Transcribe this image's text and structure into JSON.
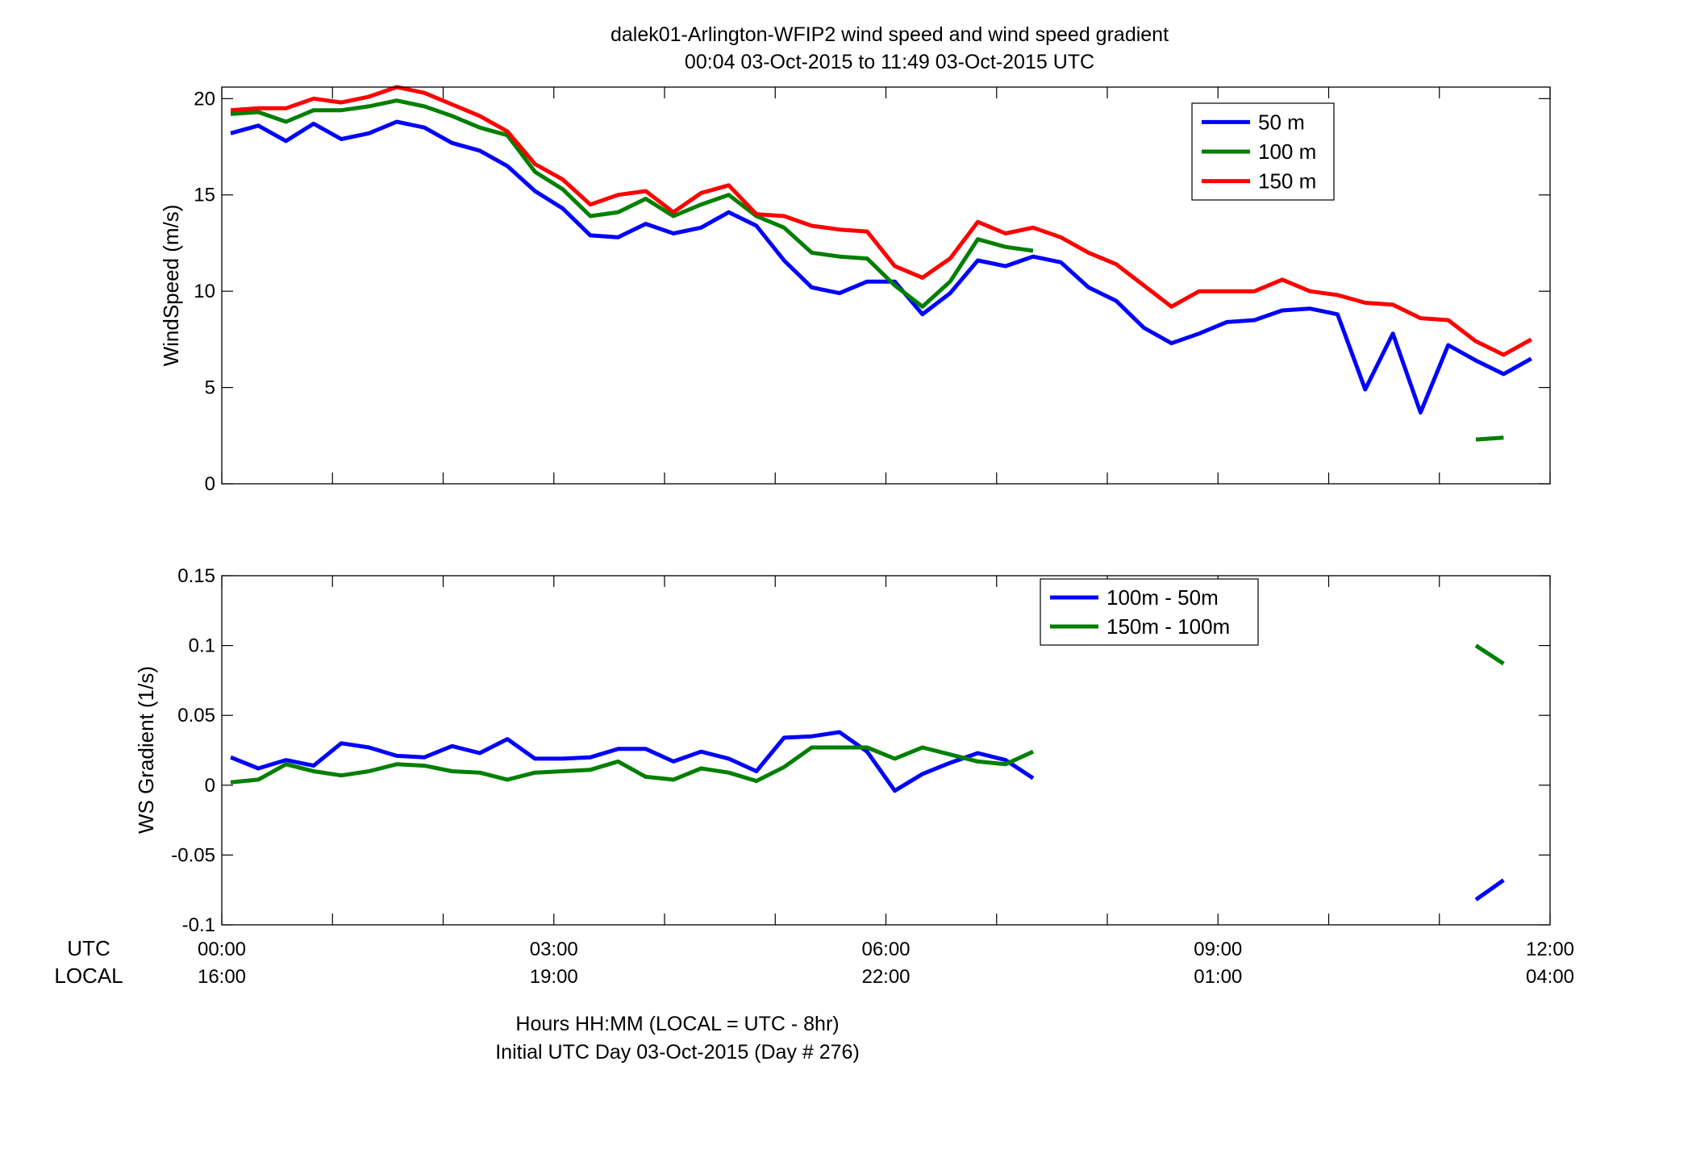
{
  "figure": {
    "title_line1": "dalek01-Arlington-WFIP2  wind speed and wind speed gradient",
    "title_line2": "00:04 03-Oct-2015 to 11:49 03-Oct-2015  UTC",
    "row_label_utc": "UTC",
    "row_label_local": "LOCAL",
    "footer_line1": "Hours HH:MM  (LOCAL = UTC - 8hr)",
    "footer_line2": "Initial UTC Day 03-Oct-2015 (Day # 276)",
    "x_ticks_utc": [
      "00:00",
      "03:00",
      "06:00",
      "09:00",
      "12:00"
    ],
    "x_ticks_local": [
      "16:00",
      "19:00",
      "22:00",
      "01:00",
      "04:00"
    ],
    "x_tick_hours": [
      0,
      3,
      6,
      9,
      12
    ],
    "xlim_hours": [
      0,
      12
    ]
  },
  "colors": {
    "blue": "#0000ff",
    "green": "#007f00",
    "red": "#ff0000"
  },
  "chart_data": [
    {
      "type": "line",
      "ylabel": "WindSpeed (m/s)",
      "ylim": [
        0,
        20.6
      ],
      "yticks": [
        0,
        5,
        10,
        15,
        20
      ],
      "ytick_labels": [
        "0",
        "5",
        "10",
        "15",
        "20"
      ],
      "legend_position": "top-right",
      "series": [
        {
          "name": "50 m",
          "color": "#0000ff",
          "segments": [
            [
              [
                0.08,
                18.2
              ],
              [
                0.33,
                18.6
              ],
              [
                0.58,
                17.8
              ],
              [
                0.83,
                18.7
              ],
              [
                1.08,
                17.9
              ],
              [
                1.33,
                18.2
              ],
              [
                1.58,
                18.8
              ],
              [
                1.83,
                18.5
              ],
              [
                2.08,
                17.7
              ],
              [
                2.33,
                17.3
              ],
              [
                2.58,
                16.5
              ],
              [
                2.83,
                15.2
              ],
              [
                3.08,
                14.3
              ],
              [
                3.33,
                12.9
              ],
              [
                3.58,
                12.8
              ],
              [
                3.83,
                13.5
              ],
              [
                4.08,
                13.0
              ],
              [
                4.33,
                13.3
              ],
              [
                4.58,
                14.1
              ],
              [
                4.83,
                13.4
              ],
              [
                5.08,
                11.6
              ],
              [
                5.33,
                10.2
              ],
              [
                5.58,
                9.9
              ],
              [
                5.83,
                10.5
              ],
              [
                6.08,
                10.5
              ],
              [
                6.33,
                8.8
              ],
              [
                6.58,
                9.9
              ],
              [
                6.83,
                11.6
              ],
              [
                7.08,
                11.3
              ],
              [
                7.33,
                11.8
              ],
              [
                7.58,
                11.5
              ],
              [
                7.83,
                10.2
              ],
              [
                8.08,
                9.5
              ],
              [
                8.33,
                8.1
              ],
              [
                8.58,
                7.3
              ],
              [
                8.83,
                7.8
              ],
              [
                9.08,
                8.4
              ],
              [
                9.33,
                8.5
              ],
              [
                9.58,
                9.0
              ],
              [
                9.83,
                9.1
              ],
              [
                10.08,
                8.8
              ],
              [
                10.33,
                4.9
              ],
              [
                10.58,
                7.8
              ],
              [
                10.83,
                3.7
              ],
              [
                11.08,
                7.2
              ],
              [
                11.33,
                6.4
              ],
              [
                11.58,
                5.7
              ],
              [
                11.83,
                6.5
              ]
            ]
          ]
        },
        {
          "name": "100 m",
          "color": "#007f00",
          "segments": [
            [
              [
                0.08,
                19.2
              ],
              [
                0.33,
                19.3
              ],
              [
                0.58,
                18.8
              ],
              [
                0.83,
                19.4
              ],
              [
                1.08,
                19.4
              ],
              [
                1.33,
                19.6
              ],
              [
                1.58,
                19.9
              ],
              [
                1.83,
                19.6
              ],
              [
                2.08,
                19.1
              ],
              [
                2.33,
                18.5
              ],
              [
                2.58,
                18.1
              ],
              [
                2.83,
                16.2
              ],
              [
                3.08,
                15.3
              ],
              [
                3.33,
                13.9
              ],
              [
                3.58,
                14.1
              ],
              [
                3.83,
                14.8
              ],
              [
                4.08,
                13.9
              ],
              [
                4.33,
                14.5
              ],
              [
                4.58,
                15.0
              ],
              [
                4.83,
                13.9
              ],
              [
                5.08,
                13.3
              ],
              [
                5.33,
                12.0
              ],
              [
                5.58,
                11.8
              ],
              [
                5.83,
                11.7
              ],
              [
                6.08,
                10.3
              ],
              [
                6.33,
                9.2
              ],
              [
                6.58,
                10.5
              ],
              [
                6.83,
                12.7
              ],
              [
                7.08,
                12.3
              ],
              [
                7.33,
                12.1
              ]
            ],
            [
              [
                11.33,
                2.3
              ],
              [
                11.58,
                2.4
              ]
            ]
          ]
        },
        {
          "name": "150 m",
          "color": "#ff0000",
          "segments": [
            [
              [
                0.08,
                19.4
              ],
              [
                0.33,
                19.5
              ],
              [
                0.58,
                19.5
              ],
              [
                0.83,
                20.0
              ],
              [
                1.08,
                19.8
              ],
              [
                1.33,
                20.1
              ],
              [
                1.58,
                20.6
              ],
              [
                1.83,
                20.3
              ],
              [
                2.08,
                19.7
              ],
              [
                2.33,
                19.1
              ],
              [
                2.58,
                18.3
              ],
              [
                2.83,
                16.6
              ],
              [
                3.08,
                15.8
              ],
              [
                3.33,
                14.5
              ],
              [
                3.58,
                15.0
              ],
              [
                3.83,
                15.2
              ],
              [
                4.08,
                14.1
              ],
              [
                4.33,
                15.1
              ],
              [
                4.58,
                15.5
              ],
              [
                4.83,
                14.0
              ],
              [
                5.08,
                13.9
              ],
              [
                5.33,
                13.4
              ],
              [
                5.58,
                13.2
              ],
              [
                5.83,
                13.1
              ],
              [
                6.08,
                11.3
              ],
              [
                6.33,
                10.7
              ],
              [
                6.58,
                11.7
              ],
              [
                6.83,
                13.6
              ],
              [
                7.08,
                13.0
              ],
              [
                7.33,
                13.3
              ],
              [
                7.58,
                12.8
              ],
              [
                7.83,
                12.0
              ],
              [
                8.08,
                11.4
              ],
              [
                8.33,
                10.3
              ],
              [
                8.58,
                9.2
              ],
              [
                8.83,
                10.0
              ],
              [
                9.08,
                10.0
              ],
              [
                9.33,
                10.0
              ],
              [
                9.58,
                10.6
              ],
              [
                9.83,
                10.0
              ],
              [
                10.08,
                9.8
              ],
              [
                10.33,
                9.4
              ],
              [
                10.58,
                9.3
              ],
              [
                10.83,
                8.6
              ],
              [
                11.08,
                8.5
              ],
              [
                11.33,
                7.4
              ],
              [
                11.58,
                6.7
              ],
              [
                11.83,
                7.5
              ]
            ]
          ]
        }
      ]
    },
    {
      "type": "line",
      "ylabel": "WS Gradient (1/s)",
      "ylim": [
        -0.1,
        0.15
      ],
      "yticks": [
        -0.1,
        -0.05,
        0,
        0.05,
        0.1,
        0.15
      ],
      "ytick_labels": [
        "-0.1",
        "-0.05",
        "0",
        "0.05",
        "0.1",
        "0.15"
      ],
      "legend_position": "top-center",
      "series": [
        {
          "name": "100m - 50m",
          "color": "#0000ff",
          "segments": [
            [
              [
                0.08,
                0.02
              ],
              [
                0.33,
                0.012
              ],
              [
                0.58,
                0.018
              ],
              [
                0.83,
                0.014
              ],
              [
                1.08,
                0.03
              ],
              [
                1.33,
                0.027
              ],
              [
                1.58,
                0.021
              ],
              [
                1.83,
                0.02
              ],
              [
                2.08,
                0.028
              ],
              [
                2.33,
                0.023
              ],
              [
                2.58,
                0.033
              ],
              [
                2.83,
                0.019
              ],
              [
                3.08,
                0.019
              ],
              [
                3.33,
                0.02
              ],
              [
                3.58,
                0.026
              ],
              [
                3.83,
                0.026
              ],
              [
                4.08,
                0.017
              ],
              [
                4.33,
                0.024
              ],
              [
                4.58,
                0.019
              ],
              [
                4.83,
                0.01
              ],
              [
                5.08,
                0.034
              ],
              [
                5.33,
                0.035
              ],
              [
                5.58,
                0.038
              ],
              [
                5.83,
                0.024
              ],
              [
                6.08,
                -0.004
              ],
              [
                6.33,
                0.008
              ],
              [
                6.58,
                0.016
              ],
              [
                6.83,
                0.023
              ],
              [
                7.08,
                0.018
              ],
              [
                7.33,
                0.005
              ]
            ],
            [
              [
                11.33,
                -0.082
              ],
              [
                11.58,
                -0.068
              ]
            ]
          ]
        },
        {
          "name": "150m - 100m",
          "color": "#007f00",
          "segments": [
            [
              [
                0.08,
                0.002
              ],
              [
                0.33,
                0.004
              ],
              [
                0.58,
                0.015
              ],
              [
                0.83,
                0.01
              ],
              [
                1.08,
                0.007
              ],
              [
                1.33,
                0.01
              ],
              [
                1.58,
                0.015
              ],
              [
                1.83,
                0.014
              ],
              [
                2.08,
                0.01
              ],
              [
                2.33,
                0.009
              ],
              [
                2.58,
                0.004
              ],
              [
                2.83,
                0.009
              ],
              [
                3.08,
                0.01
              ],
              [
                3.33,
                0.011
              ],
              [
                3.58,
                0.017
              ],
              [
                3.83,
                0.006
              ],
              [
                4.08,
                0.004
              ],
              [
                4.33,
                0.012
              ],
              [
                4.58,
                0.009
              ],
              [
                4.83,
                0.003
              ],
              [
                5.08,
                0.013
              ],
              [
                5.33,
                0.027
              ],
              [
                5.58,
                0.027
              ],
              [
                5.83,
                0.027
              ],
              [
                6.08,
                0.019
              ],
              [
                6.33,
                0.027
              ],
              [
                6.58,
                0.022
              ],
              [
                6.83,
                0.017
              ],
              [
                7.08,
                0.015
              ],
              [
                7.33,
                0.024
              ]
            ],
            [
              [
                11.33,
                0.1
              ],
              [
                11.58,
                0.087
              ]
            ]
          ]
        }
      ]
    }
  ]
}
